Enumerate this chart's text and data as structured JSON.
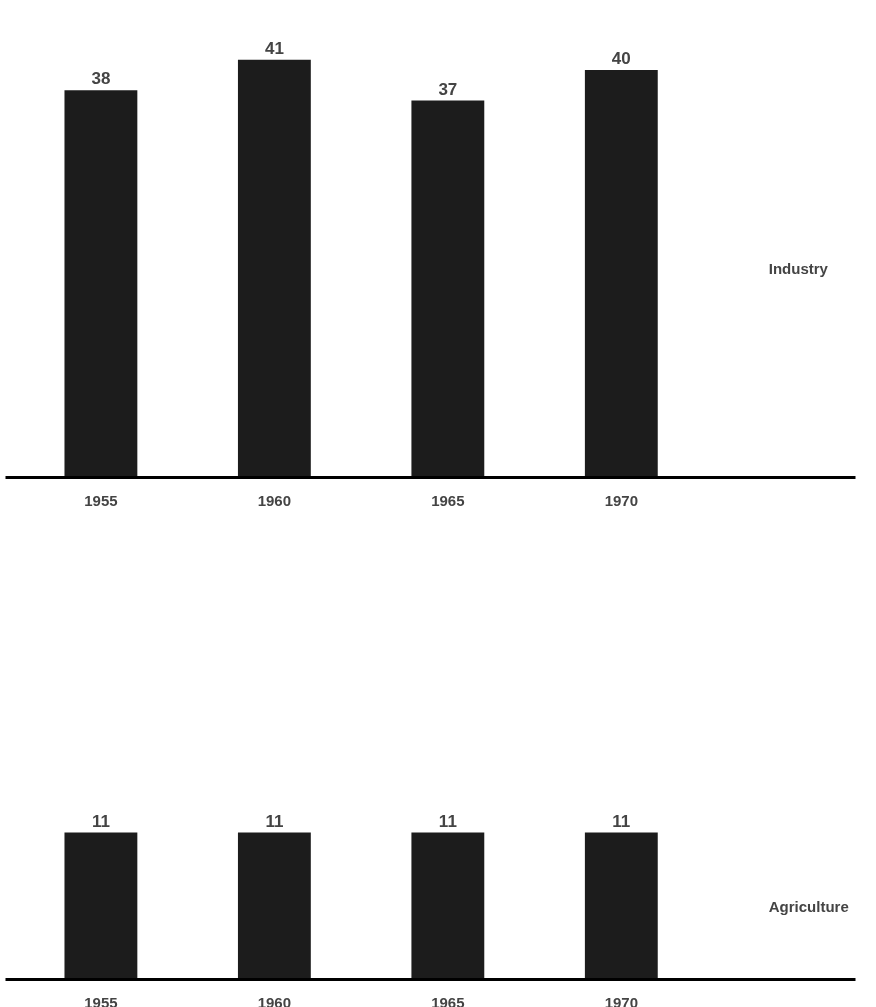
{
  "chart_data": [
    {
      "type": "bar",
      "categories": [
        "1955",
        "1960",
        "1965",
        "1970"
      ],
      "values": [
        38,
        41,
        37,
        40
      ],
      "color": "#1c1c1c",
      "data_labels": true,
      "annotations": [
        "Industry"
      ],
      "grid": false
    },
    {
      "type": "bar",
      "categories": [
        "1955",
        "1960",
        "1965",
        "1970"
      ],
      "values": [
        11,
        11,
        11,
        11
      ],
      "color": "#1c1c1c",
      "data_labels": true,
      "annotations": [
        "Agriculture"
      ],
      "grid": false
    }
  ]
}
